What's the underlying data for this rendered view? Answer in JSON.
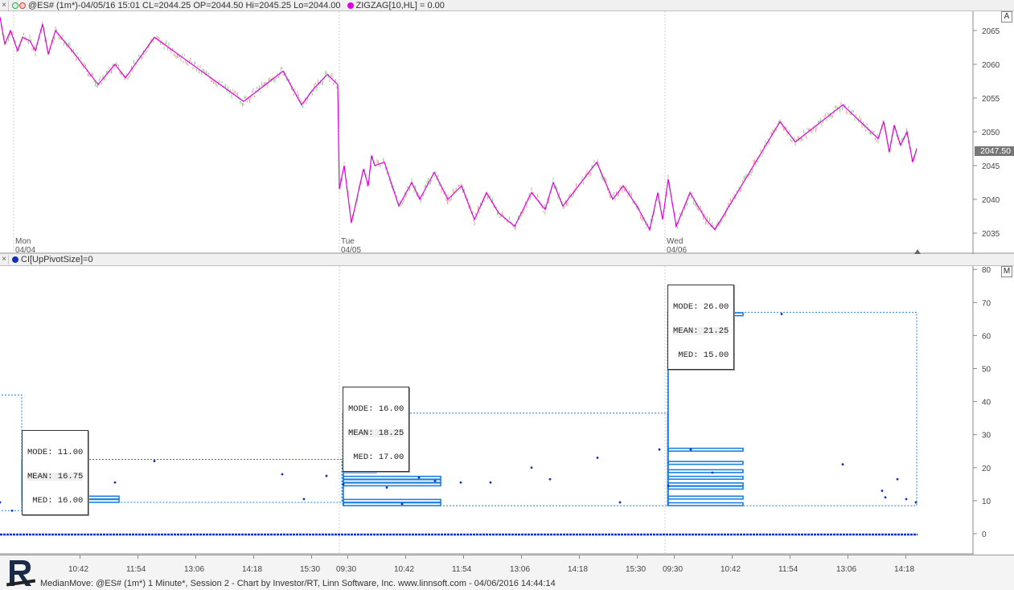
{
  "top_pane": {
    "header": "@ES# (1m*)-04/05/16 15:01 CL=2044.25 OP=2044.50 Hi=2045.25 Lo=2044.00",
    "indicator": "ZIGZAG[10,HL] = 0.00",
    "button": "A",
    "last_price": "2047.50",
    "y_ticks": [
      "2065",
      "2060",
      "2055",
      "2050",
      "2045",
      "2040",
      "2035"
    ],
    "day_labels": [
      {
        "day": "Mon",
        "date": "04/04"
      },
      {
        "day": "Tue",
        "date": "04/05"
      },
      {
        "day": "Wed",
        "date": "04/06"
      }
    ]
  },
  "bottom_pane": {
    "header": "CI[UpPivotSize]=0",
    "button": "M",
    "y_ticks": [
      "80",
      "70",
      "60",
      "50",
      "40",
      "30",
      "20",
      "10",
      "0"
    ],
    "x_ticks": [
      "10:42",
      "11:54",
      "13:06",
      "14:18",
      "15:30",
      "09:30",
      "10:42",
      "11:54",
      "13:06",
      "14:18",
      "15:30",
      "09:30",
      "10:42",
      "11:54",
      "13:06",
      "14:18"
    ],
    "stats": [
      {
        "mode": "MODE: 11.00",
        "mean": "MEAN: 16.75",
        "med": " MED: 16.00"
      },
      {
        "mode": "MODE: 16.00",
        "mean": "MEAN: 18.25",
        "med": " MED: 17.00"
      },
      {
        "mode": "MODE: 26.00",
        "mean": "MEAN: 21.25",
        "med": " MED: 15.00"
      }
    ]
  },
  "footer": {
    "text": "MedianMove: @ES# (1m*) 1 Minute*, Session 2 - Chart by Investor/RT, Linn Software, Inc. www.linnsoft.com - 04/06/2016 14:44:14"
  },
  "colors": {
    "zigzag": "#e000e0",
    "bars_up": "#8fd68f",
    "bars_down": "#f0a0a0",
    "histogram": "#1a7fe0",
    "dots": "#1030c0",
    "grid": "#d8d8d8"
  }
}
